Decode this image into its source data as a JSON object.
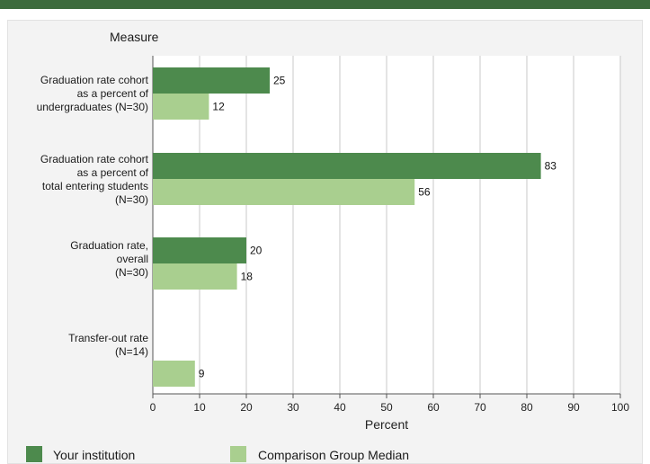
{
  "colors": {
    "top_rule": "#3d6b3d",
    "series_primary": "#4d8a4d",
    "series_secondary": "#a9cf8f",
    "grid": "#c8c8c8"
  },
  "chart_data": {
    "type": "bar",
    "orientation": "horizontal",
    "title": "Measure",
    "xlabel": "Percent",
    "ylabel": "",
    "xlim": [
      0,
      100
    ],
    "xticks": [
      0,
      10,
      20,
      30,
      40,
      50,
      60,
      70,
      80,
      90,
      100
    ],
    "grid": true,
    "legend_position": "bottom",
    "categories": [
      "Graduation rate cohort\nas a percent of\nundergraduates (N=30)",
      "Graduation rate cohort\nas a percent of\ntotal entering students\n(N=30)",
      "Graduation rate,\noverall\n(N=30)",
      "Transfer-out rate\n(N=14)"
    ],
    "series": [
      {
        "name": "Your institution",
        "values": [
          25,
          83,
          20,
          null
        ],
        "color": "#4d8a4d"
      },
      {
        "name": "Comparison Group Median",
        "values": [
          12,
          56,
          18,
          9
        ],
        "color": "#a9cf8f"
      }
    ]
  }
}
